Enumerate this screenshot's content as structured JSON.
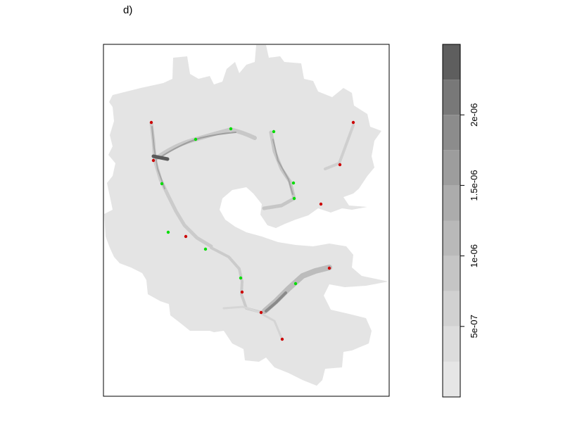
{
  "panel": {
    "label": "d)"
  },
  "chart_data": {
    "type": "heatmap",
    "title": "",
    "xlabel": "",
    "ylabel": "",
    "grid": false,
    "colorbar": {
      "range": [
        0,
        2.5e-06
      ],
      "levels": [
        0,
        2.5e-07,
        5e-07,
        7.5e-07,
        1e-06,
        1.25e-06,
        1.5e-06,
        1.75e-06,
        2e-06,
        2.25e-06,
        2.5e-06
      ],
      "colors": [
        "#e6e6e6",
        "#dcdcdc",
        "#d1d1d1",
        "#c5c5c5",
        "#b9b9b9",
        "#acacac",
        "#9d9d9d",
        "#8c8c8c",
        "#787878",
        "#5e5e5e"
      ],
      "ticks": [
        {
          "value": 5e-07,
          "label": "5e-07"
        },
        {
          "value": 1e-06,
          "label": "1e-06"
        },
        {
          "value": 1.5e-06,
          "label": "1.5e-06"
        },
        {
          "value": 2e-06,
          "label": "2e-06"
        }
      ],
      "placement": "right"
    },
    "points": {
      "red": {
        "color": "#cc0000",
        "count": 10
      },
      "green": {
        "color": "#00dd00",
        "count": 10
      }
    }
  }
}
